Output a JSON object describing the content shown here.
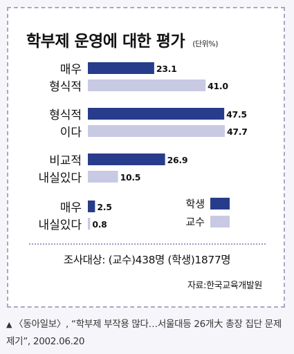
{
  "chart_data": {
    "type": "bar",
    "orientation": "horizontal",
    "title": "학부제 운영에 대한 평가",
    "unit": "(단위%)",
    "categories": [
      [
        "매우",
        "형식적"
      ],
      [
        "형식적",
        "이다"
      ],
      [
        "비교적",
        "내실있다"
      ],
      [
        "매우",
        "내실있다"
      ]
    ],
    "series": [
      {
        "name": "학생",
        "color": "#283c8c",
        "values": [
          23.1,
          47.5,
          26.9,
          2.5
        ]
      },
      {
        "name": "교수",
        "color": "#c8c9e3",
        "values": [
          41.0,
          47.7,
          10.5,
          0.8
        ]
      }
    ],
    "value_labels": [
      [
        "23.1",
        "41.0"
      ],
      [
        "47.5",
        "47.7"
      ],
      [
        "26.9",
        "10.5"
      ],
      [
        "2.5",
        "0.8"
      ]
    ],
    "xlim": [
      0,
      50
    ],
    "grid": false,
    "legend": "right"
  },
  "survey_note": "조사대상: (교수)438명 (학생)1877명",
  "source": "자료:한국교육개발원",
  "caption": {
    "marker": "▲",
    "text": "〈동아일보〉, “학부제 부작용 많다…서울대등 26개大 총장 집단 문제제기”, 2002.06.20"
  }
}
